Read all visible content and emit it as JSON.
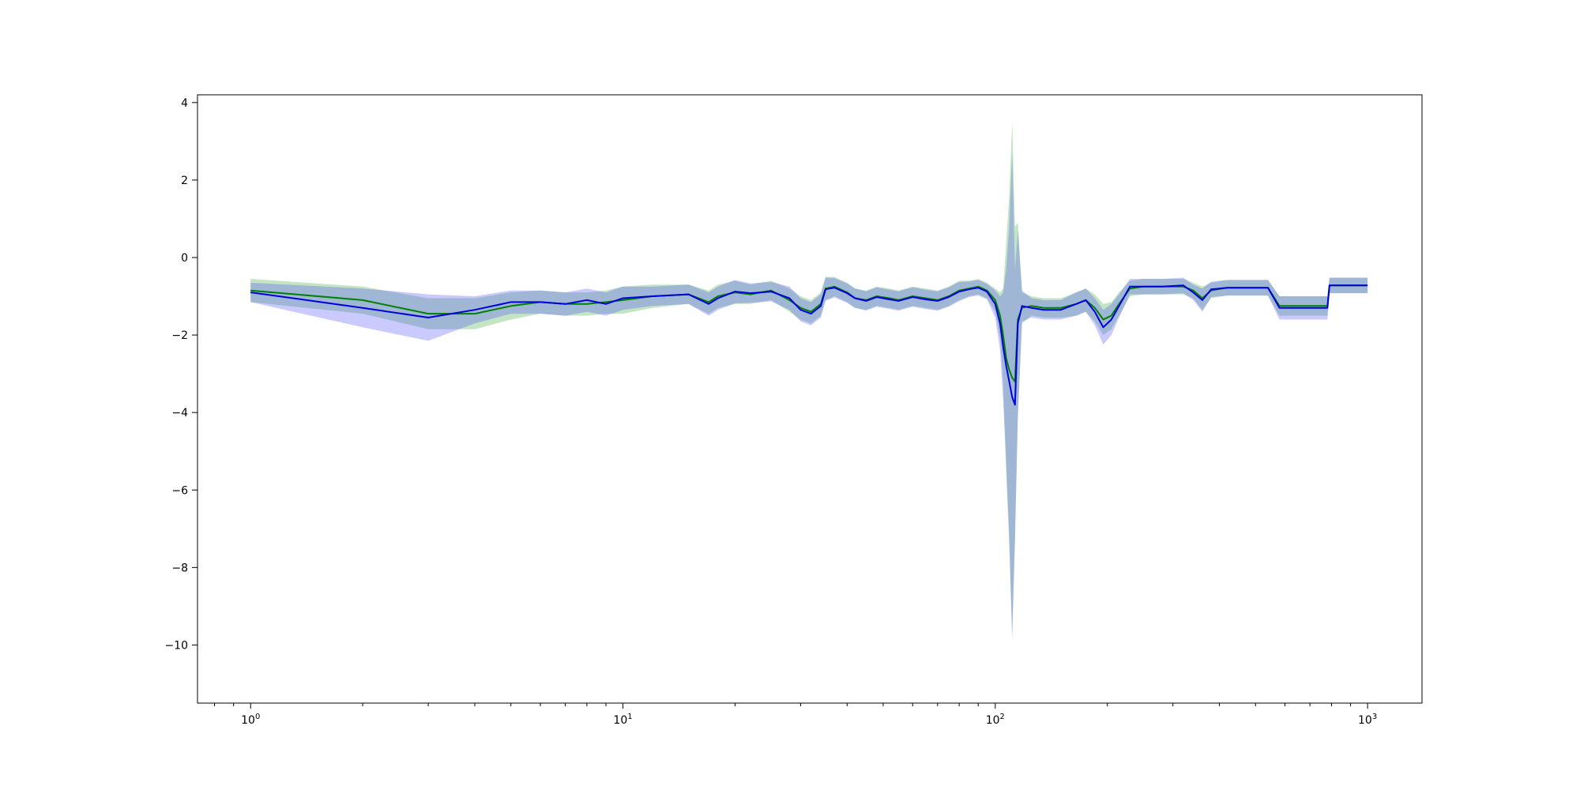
{
  "chart_data": {
    "type": "line",
    "title": "",
    "xlabel": "",
    "ylabel": "",
    "xscale": "log",
    "xlim": [
      0.72,
      1400
    ],
    "ylim": [
      -11.5,
      4.2
    ],
    "grid": false,
    "legend": "none",
    "x_ticks": [
      {
        "value": 1,
        "base": "10",
        "exp": "0"
      },
      {
        "value": 10,
        "base": "10",
        "exp": "1"
      },
      {
        "value": 100,
        "base": "10",
        "exp": "2"
      },
      {
        "value": 1000,
        "base": "10",
        "exp": "3"
      }
    ],
    "y_ticks": [
      {
        "value": 4,
        "label": "4"
      },
      {
        "value": 2,
        "label": "2"
      },
      {
        "value": 0,
        "label": "0"
      },
      {
        "value": -2,
        "label": "−2"
      },
      {
        "value": -4,
        "label": "−4"
      },
      {
        "value": -6,
        "label": "−6"
      },
      {
        "value": -8,
        "label": "−8"
      },
      {
        "value": -10,
        "label": "−10"
      }
    ],
    "series": [
      {
        "color": "#008000",
        "band_color": "#2ca02c",
        "points": [
          [
            1,
            -0.85,
            0.3
          ],
          [
            2,
            -1.1,
            0.35
          ],
          [
            3,
            -1.45,
            0.4
          ],
          [
            4,
            -1.45,
            0.4
          ],
          [
            5,
            -1.25,
            0.35
          ],
          [
            6,
            -1.15,
            0.3
          ],
          [
            7,
            -1.2,
            0.3
          ],
          [
            8,
            -1.2,
            0.3
          ],
          [
            9,
            -1.15,
            0.3
          ],
          [
            10,
            -1.1,
            0.35
          ],
          [
            12,
            -1.0,
            0.3
          ],
          [
            15,
            -0.95,
            0.25
          ],
          [
            17,
            -1.15,
            0.3
          ],
          [
            18,
            -1.0,
            0.3
          ],
          [
            20,
            -0.9,
            0.3
          ],
          [
            22,
            -0.95,
            0.25
          ],
          [
            25,
            -0.85,
            0.25
          ],
          [
            28,
            -1.1,
            0.3
          ],
          [
            30,
            -1.3,
            0.3
          ],
          [
            32,
            -1.4,
            0.3
          ],
          [
            34,
            -1.2,
            0.3
          ],
          [
            35,
            -0.8,
            0.3
          ],
          [
            37,
            -0.75,
            0.25
          ],
          [
            40,
            -0.9,
            0.25
          ],
          [
            42,
            -1.05,
            0.25
          ],
          [
            45,
            -1.1,
            0.25
          ],
          [
            48,
            -1.0,
            0.25
          ],
          [
            52,
            -1.05,
            0.25
          ],
          [
            55,
            -1.1,
            0.25
          ],
          [
            60,
            -1.0,
            0.25
          ],
          [
            65,
            -1.05,
            0.25
          ],
          [
            70,
            -1.1,
            0.25
          ],
          [
            75,
            -1.0,
            0.25
          ],
          [
            80,
            -0.85,
            0.25
          ],
          [
            85,
            -0.8,
            0.2
          ],
          [
            90,
            -0.75,
            0.2
          ],
          [
            95,
            -0.85,
            0.2
          ],
          [
            100,
            -1.1,
            0.3
          ],
          [
            103,
            -1.5,
            0.6
          ],
          [
            105,
            -2.0,
            1.2
          ],
          [
            107,
            -2.6,
            3.0
          ],
          [
            109,
            -2.9,
            4.5
          ],
          [
            111,
            -3.1,
            6.6
          ],
          [
            113,
            -3.2,
            4.0
          ],
          [
            115,
            -1.6,
            2.5
          ],
          [
            118,
            -1.3,
            0.4
          ],
          [
            125,
            -1.25,
            0.25
          ],
          [
            135,
            -1.3,
            0.25
          ],
          [
            150,
            -1.3,
            0.25
          ],
          [
            165,
            -1.2,
            0.3
          ],
          [
            175,
            -1.1,
            0.3
          ],
          [
            185,
            -1.3,
            0.35
          ],
          [
            195,
            -1.6,
            0.4
          ],
          [
            205,
            -1.5,
            0.35
          ],
          [
            215,
            -1.2,
            0.3
          ],
          [
            230,
            -0.8,
            0.2
          ],
          [
            250,
            -0.75,
            0.2
          ],
          [
            280,
            -0.75,
            0.2
          ],
          [
            320,
            -0.75,
            0.2
          ],
          [
            340,
            -0.85,
            0.2
          ],
          [
            360,
            -1.05,
            0.3
          ],
          [
            380,
            -0.85,
            0.2
          ],
          [
            420,
            -0.78,
            0.2
          ],
          [
            480,
            -0.78,
            0.2
          ],
          [
            540,
            -0.78,
            0.2
          ],
          [
            580,
            -1.25,
            0.25
          ],
          [
            700,
            -1.25,
            0.25
          ],
          [
            780,
            -1.25,
            0.25
          ],
          [
            790,
            -0.72,
            0.2
          ],
          [
            1000,
            -0.72,
            0.2
          ]
        ]
      },
      {
        "color": "#0000dd",
        "band_color": "#4040ff",
        "points": [
          [
            1,
            -0.9,
            0.25
          ],
          [
            2,
            -1.3,
            0.5
          ],
          [
            3,
            -1.55,
            0.6
          ],
          [
            4,
            -1.35,
            0.35
          ],
          [
            5,
            -1.15,
            0.3
          ],
          [
            6,
            -1.15,
            0.3
          ],
          [
            7,
            -1.2,
            0.3
          ],
          [
            8,
            -1.1,
            0.3
          ],
          [
            9,
            -1.2,
            0.3
          ],
          [
            10,
            -1.05,
            0.3
          ],
          [
            12,
            -1.0,
            0.25
          ],
          [
            15,
            -0.95,
            0.25
          ],
          [
            17,
            -1.2,
            0.3
          ],
          [
            18,
            -1.05,
            0.3
          ],
          [
            20,
            -0.88,
            0.3
          ],
          [
            22,
            -0.92,
            0.25
          ],
          [
            25,
            -0.88,
            0.25
          ],
          [
            28,
            -1.05,
            0.3
          ],
          [
            30,
            -1.35,
            0.3
          ],
          [
            32,
            -1.45,
            0.3
          ],
          [
            34,
            -1.25,
            0.3
          ],
          [
            35,
            -0.82,
            0.3
          ],
          [
            37,
            -0.78,
            0.25
          ],
          [
            40,
            -0.92,
            0.25
          ],
          [
            42,
            -1.05,
            0.25
          ],
          [
            45,
            -1.12,
            0.25
          ],
          [
            48,
            -1.02,
            0.25
          ],
          [
            52,
            -1.08,
            0.25
          ],
          [
            55,
            -1.12,
            0.25
          ],
          [
            60,
            -1.02,
            0.25
          ],
          [
            65,
            -1.08,
            0.25
          ],
          [
            70,
            -1.12,
            0.25
          ],
          [
            75,
            -1.02,
            0.25
          ],
          [
            80,
            -0.88,
            0.25
          ],
          [
            85,
            -0.82,
            0.2
          ],
          [
            90,
            -0.78,
            0.2
          ],
          [
            95,
            -0.88,
            0.2
          ],
          [
            100,
            -1.2,
            0.35
          ],
          [
            103,
            -1.7,
            0.7
          ],
          [
            105,
            -2.3,
            1.4
          ],
          [
            107,
            -2.8,
            2.5
          ],
          [
            109,
            -3.2,
            4.0
          ],
          [
            111,
            -3.6,
            6.3
          ],
          [
            113,
            -3.8,
            3.5
          ],
          [
            115,
            -1.7,
            2.4
          ],
          [
            118,
            -1.25,
            0.4
          ],
          [
            125,
            -1.3,
            0.25
          ],
          [
            135,
            -1.35,
            0.25
          ],
          [
            150,
            -1.35,
            0.25
          ],
          [
            165,
            -1.2,
            0.3
          ],
          [
            175,
            -1.1,
            0.3
          ],
          [
            185,
            -1.4,
            0.35
          ],
          [
            195,
            -1.8,
            0.45
          ],
          [
            205,
            -1.6,
            0.4
          ],
          [
            215,
            -1.25,
            0.3
          ],
          [
            230,
            -0.75,
            0.2
          ],
          [
            250,
            -0.75,
            0.2
          ],
          [
            280,
            -0.75,
            0.2
          ],
          [
            320,
            -0.72,
            0.2
          ],
          [
            340,
            -0.9,
            0.2
          ],
          [
            360,
            -1.1,
            0.3
          ],
          [
            380,
            -0.82,
            0.2
          ],
          [
            420,
            -0.78,
            0.2
          ],
          [
            480,
            -0.78,
            0.2
          ],
          [
            540,
            -0.78,
            0.2
          ],
          [
            580,
            -1.3,
            0.3
          ],
          [
            700,
            -1.3,
            0.3
          ],
          [
            780,
            -1.3,
            0.3
          ],
          [
            790,
            -0.72,
            0.2
          ],
          [
            1000,
            -0.72,
            0.2
          ]
        ]
      }
    ]
  }
}
